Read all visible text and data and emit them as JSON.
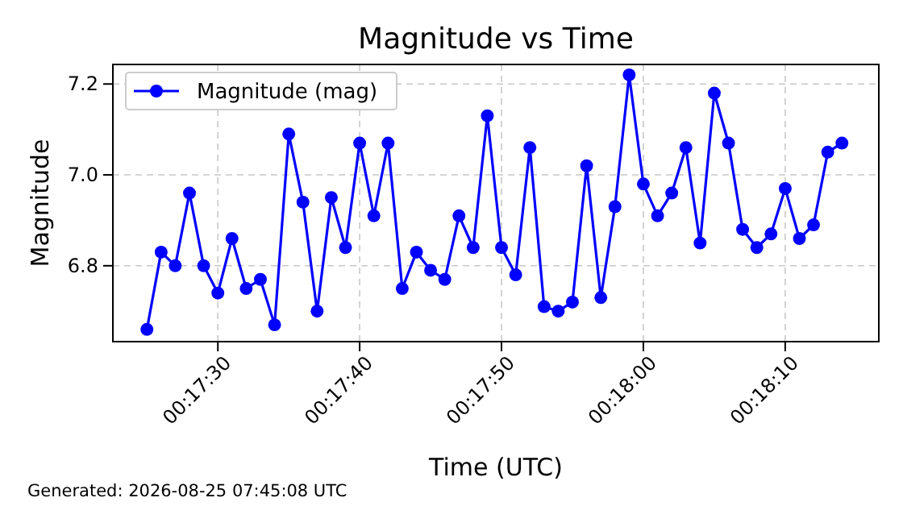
{
  "chart_data": {
    "type": "line",
    "title": "Magnitude vs Time",
    "xlabel": "Time (UTC)",
    "ylabel": "Magnitude",
    "annotations": [
      "Generated: 2026-08-25 07:45:08 UTC"
    ],
    "x": [
      0.290278,
      0.290556,
      0.290833,
      0.291111,
      0.291389,
      0.291667,
      0.291944,
      0.292222,
      0.2925,
      0.292778,
      0.293056,
      0.293333,
      0.293611,
      0.293889,
      0.294167,
      0.294444,
      0.294722,
      0.295,
      0.295278,
      0.295556,
      0.295833,
      0.296111,
      0.296389,
      0.296667,
      0.296944,
      0.297222,
      0.2975,
      0.297778,
      0.298056,
      0.298333,
      0.298611,
      0.298889,
      0.299167,
      0.299444,
      0.299722,
      0.3,
      0.300278,
      0.300556,
      0.300833,
      0.301111,
      0.301389,
      0.301667,
      0.301944,
      0.302222,
      0.3025,
      0.302778,
      0.303056,
      0.303333,
      0.303611,
      0.303889
    ],
    "series": [
      {
        "name": "Magnitude (mag)",
        "color": "#0000ff",
        "values": [
          6.66,
          6.83,
          6.8,
          6.96,
          6.8,
          6.74,
          6.86,
          6.75,
          6.77,
          6.67,
          7.09,
          6.94,
          6.7,
          6.95,
          6.84,
          7.07,
          6.91,
          7.07,
          6.75,
          6.83,
          6.79,
          6.77,
          6.91,
          6.84,
          7.13,
          6.84,
          6.78,
          7.06,
          6.71,
          6.7,
          6.72,
          7.02,
          6.73,
          6.93,
          7.22,
          6.98,
          6.91,
          6.96,
          7.06,
          6.85,
          7.18,
          7.07,
          6.88,
          6.84,
          6.87,
          6.97,
          6.86,
          6.89,
          7.05,
          7.07
        ]
      }
    ],
    "xlim": [
      0.289611,
      0.304611
    ],
    "xticks": [
      {
        "value": 0.291667,
        "label": "00:17:30"
      },
      {
        "value": 0.294444,
        "label": "00:17:40"
      },
      {
        "value": 0.297222,
        "label": "00:17:50"
      },
      {
        "value": 0.3,
        "label": "00:18:00"
      },
      {
        "value": 0.302778,
        "label": "00:18:10"
      }
    ],
    "ylim": [
      6.633,
      7.243
    ],
    "yticks": [
      6.8,
      {
        "value": 7.0,
        "label": "7.0"
      },
      7.2
    ],
    "grid": true,
    "legend": "top left",
    "marker": "circle",
    "line_style": "solid"
  }
}
